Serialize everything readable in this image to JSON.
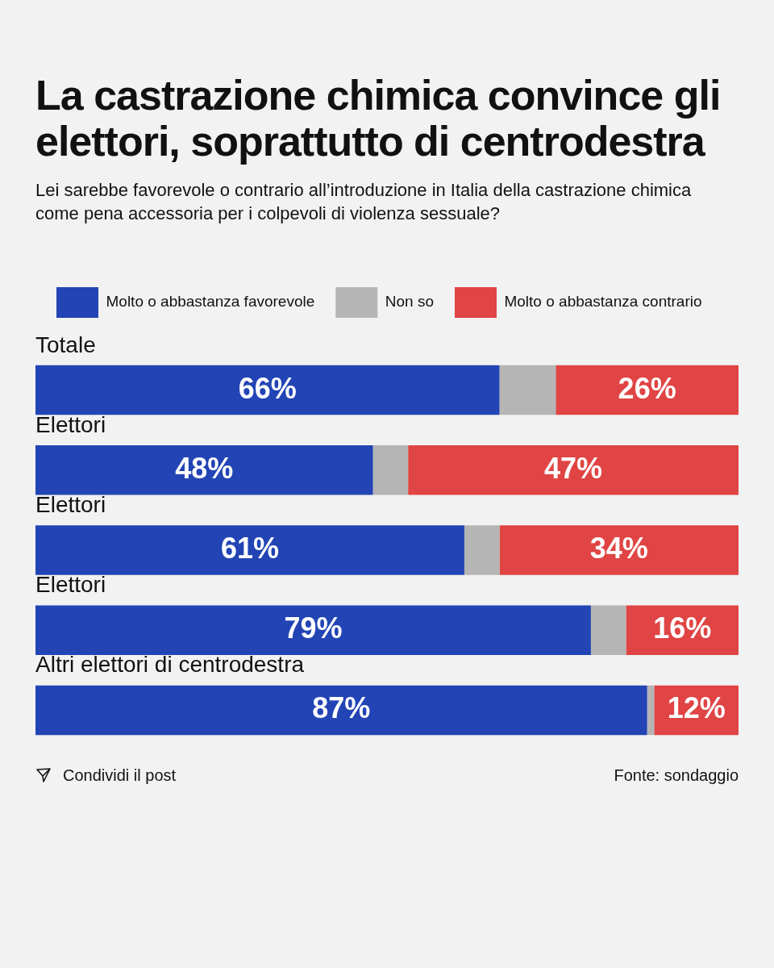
{
  "chart_data": {
    "type": "bar",
    "orientation": "horizontal",
    "stacked": true,
    "title": "La castrazione chimica convince gli elettori, soprattutto di centrodestra",
    "subtitle": "Lei sarebbe favorevole o contrario all’introduzione in Italia della castrazione chimica come pena accessoria per i colpevoli di violenza sessuale?",
    "categories": [
      "Totale",
      "Elettori",
      "Elettori",
      "Elettori",
      "Altri elettori di centrodestra"
    ],
    "series": [
      {
        "name": "Molto o abbastanza favorevole",
        "color": "#2244b4",
        "values": [
          66,
          48,
          61,
          79,
          87
        ],
        "value_labels": [
          "66%",
          "48%",
          "61%",
          "79%",
          "87%"
        ]
      },
      {
        "name": "Non so",
        "color": "#b5b5b5",
        "values": [
          8,
          5,
          5,
          5,
          1
        ]
      },
      {
        "name": "Molto o abbastanza contrario",
        "color": "#e04444",
        "values": [
          26,
          47,
          34,
          16,
          12
        ],
        "value_labels": [
          "26%",
          "47%",
          "34%",
          "16%",
          "12%"
        ]
      }
    ],
    "xlim": [
      0,
      100
    ],
    "tick_labels": false,
    "grid": false,
    "legend": "top",
    "annotations": [
      "Condividi il post",
      "Fonte: sondaggio"
    ]
  }
}
